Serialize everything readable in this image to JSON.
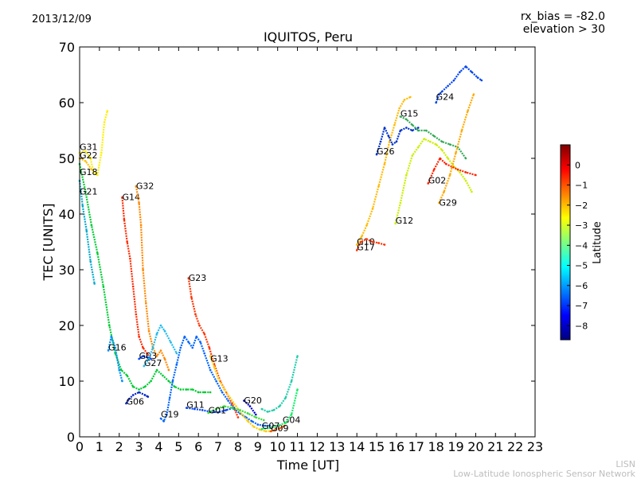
{
  "date": "2013/12/09",
  "header_right": {
    "line1": "rx_bias = -82.0",
    "line2": "elevation > 30"
  },
  "footer": {
    "line1": "LISN",
    "line2": "Low-Latitude Ionospheric Sensor Network"
  },
  "chart_data": {
    "type": "scatter",
    "title": "IQUITOS, Peru",
    "xlabel": "Time [UT]",
    "ylabel": "TEC [UNITS]",
    "xlim": [
      0,
      23
    ],
    "ylim": [
      0,
      70
    ],
    "xticks": [
      0,
      1,
      2,
      3,
      4,
      5,
      6,
      7,
      8,
      9,
      10,
      11,
      12,
      13,
      14,
      15,
      16,
      17,
      18,
      19,
      20,
      21,
      22,
      23
    ],
    "yticks": [
      0,
      10,
      20,
      30,
      40,
      50,
      60,
      70
    ],
    "grid": false,
    "colorbar": {
      "label": "Latitude",
      "range": [
        -8.7,
        1.0
      ],
      "ticks": [
        0,
        -1,
        -2,
        -3,
        -4,
        -5,
        -6,
        -7,
        -8
      ],
      "colormap": [
        "#00007f",
        "#0000ff",
        "#007fff",
        "#00ffff",
        "#7fff7f",
        "#ffff00",
        "#ff7f00",
        "#ff0000",
        "#7f0000"
      ]
    },
    "series": [
      {
        "name": "G31",
        "label_at": [
          0.0,
          51.5
        ],
        "color": "#ffee00",
        "points": [
          [
            0.0,
            51.0
          ],
          [
            0.3,
            51.3
          ],
          [
            0.55,
            50.0
          ],
          [
            0.7,
            47.5
          ],
          [
            0.9,
            47.0
          ],
          [
            1.1,
            51.0
          ],
          [
            1.25,
            56.5
          ],
          [
            1.4,
            58.5
          ]
        ]
      },
      {
        "name": "G22",
        "label_at": [
          0.0,
          50.0
        ],
        "color": "#ffc000",
        "points": [
          [
            0.0,
            50.0
          ],
          [
            0.3,
            49.5
          ],
          [
            0.6,
            48.0
          ]
        ]
      },
      {
        "name": "G18",
        "label_at": [
          0.0,
          47.0
        ],
        "color": "#00cc33",
        "points": [
          [
            0.0,
            49.0
          ],
          [
            0.3,
            44.0
          ],
          [
            0.6,
            38.0
          ],
          [
            0.9,
            33.0
          ],
          [
            1.2,
            27.0
          ],
          [
            1.5,
            20.0
          ],
          [
            1.8,
            15.0
          ],
          [
            2.1,
            12.0
          ],
          [
            2.4,
            11.0
          ],
          [
            2.7,
            9.0
          ],
          [
            3.0,
            8.5
          ],
          [
            3.3,
            9.0
          ],
          [
            3.6,
            10.0
          ],
          [
            3.9,
            12.0
          ],
          [
            4.2,
            11.0
          ],
          [
            4.5,
            10.0
          ],
          [
            4.8,
            9.0
          ],
          [
            5.1,
            8.5
          ],
          [
            5.4,
            8.5
          ],
          [
            5.7,
            8.5
          ],
          [
            6.0,
            8.0
          ],
          [
            6.3,
            8.0
          ],
          [
            6.6,
            8.0
          ]
        ]
      },
      {
        "name": "G21",
        "label_at": [
          0.0,
          43.5
        ],
        "color": "#00aacc",
        "points": [
          [
            0.0,
            46.0
          ],
          [
            0.15,
            41.5
          ],
          [
            0.35,
            37.0
          ],
          [
            0.55,
            31.5
          ],
          [
            0.75,
            27.5
          ]
        ]
      },
      {
        "name": "G16",
        "label_at": [
          1.45,
          15.5
        ],
        "color": "#0090ff",
        "points": [
          [
            1.45,
            15.5
          ],
          [
            1.6,
            18.0
          ],
          [
            1.8,
            16.0
          ],
          [
            2.0,
            12.0
          ],
          [
            2.15,
            10.0
          ]
        ]
      },
      {
        "name": "G14",
        "label_at": [
          2.15,
          42.5
        ],
        "color": "#ff2a00",
        "points": [
          [
            2.15,
            43.0
          ],
          [
            2.25,
            39.0
          ],
          [
            2.4,
            35.0
          ],
          [
            2.55,
            32.0
          ],
          [
            2.7,
            27.0
          ],
          [
            2.85,
            22.0
          ],
          [
            3.0,
            18.0
          ],
          [
            3.2,
            16.0
          ],
          [
            3.4,
            15.0
          ],
          [
            3.6,
            14.0
          ]
        ]
      },
      {
        "name": "G32",
        "label_at": [
          2.85,
          44.5
        ],
        "color": "#ff8800",
        "points": [
          [
            2.85,
            45.0
          ],
          [
            3.0,
            42.0
          ],
          [
            3.1,
            38.0
          ],
          [
            3.2,
            30.0
          ],
          [
            3.35,
            24.0
          ],
          [
            3.5,
            19.0
          ],
          [
            3.7,
            16.0
          ],
          [
            3.9,
            14.5
          ],
          [
            4.1,
            15.5
          ],
          [
            4.3,
            14.0
          ],
          [
            4.5,
            12.0
          ]
        ]
      },
      {
        "name": "G06",
        "label_at": [
          2.35,
          5.8
        ],
        "color": "#0022cc",
        "points": [
          [
            2.35,
            6.0
          ],
          [
            2.5,
            6.8
          ],
          [
            2.7,
            7.5
          ],
          [
            3.0,
            8.0
          ],
          [
            3.3,
            7.5
          ],
          [
            3.45,
            7.2
          ]
        ]
      },
      {
        "name": "G03",
        "label_at": [
          3.0,
          14.0
        ],
        "color": "#0044ff",
        "points": [
          [
            3.0,
            14.0
          ],
          [
            3.2,
            14.5
          ],
          [
            3.45,
            14.2
          ],
          [
            3.6,
            14.0
          ]
        ]
      },
      {
        "name": "G27",
        "label_at": [
          3.25,
          12.7
        ],
        "color": "#22bbee",
        "points": [
          [
            3.25,
            12.7
          ],
          [
            3.5,
            14.0
          ],
          [
            3.7,
            16.0
          ],
          [
            3.9,
            18.5
          ],
          [
            4.1,
            20.0
          ],
          [
            4.3,
            19.0
          ],
          [
            4.6,
            17.0
          ],
          [
            4.9,
            15.0
          ]
        ]
      },
      {
        "name": "G19",
        "label_at": [
          4.1,
          3.5
        ],
        "color": "#0066ff",
        "points": [
          [
            4.1,
            3.3
          ],
          [
            4.25,
            2.8
          ],
          [
            4.4,
            4.0
          ],
          [
            4.55,
            7.0
          ],
          [
            4.7,
            10.0
          ],
          [
            4.9,
            13.0
          ],
          [
            5.1,
            16.0
          ],
          [
            5.3,
            18.0
          ],
          [
            5.5,
            17.0
          ],
          [
            5.7,
            16.0
          ],
          [
            5.9,
            18.0
          ],
          [
            6.1,
            17.0
          ],
          [
            6.3,
            15.0
          ],
          [
            6.6,
            12.0
          ],
          [
            6.9,
            10.0
          ],
          [
            7.2,
            8.0
          ],
          [
            7.5,
            6.5
          ],
          [
            7.8,
            5.0
          ],
          [
            8.1,
            4.2
          ],
          [
            8.4,
            3.5
          ],
          [
            8.7,
            2.8
          ],
          [
            9.0,
            2.2
          ],
          [
            9.3,
            2.0
          ],
          [
            9.6,
            2.0
          ]
        ]
      },
      {
        "name": "G23",
        "label_at": [
          5.5,
          28.0
        ],
        "color": "#ff3300",
        "points": [
          [
            5.5,
            28.5
          ],
          [
            5.65,
            25.0
          ],
          [
            5.85,
            22.0
          ],
          [
            6.05,
            20.0
          ],
          [
            6.3,
            18.5
          ],
          [
            6.55,
            16.0
          ],
          [
            6.8,
            13.0
          ],
          [
            7.1,
            10.0
          ],
          [
            7.4,
            8.0
          ],
          [
            7.7,
            6.0
          ],
          [
            8.0,
            3.5
          ]
        ]
      },
      {
        "name": "G13",
        "label_at": [
          6.6,
          13.5
        ],
        "color": "#ffcc00",
        "points": [
          [
            6.6,
            14.5
          ],
          [
            6.8,
            12.5
          ],
          [
            7.0,
            10.5
          ],
          [
            7.3,
            8.5
          ],
          [
            7.6,
            7.0
          ],
          [
            7.9,
            5.5
          ],
          [
            8.2,
            4.0
          ],
          [
            8.5,
            2.8
          ],
          [
            8.8,
            1.8
          ],
          [
            9.1,
            1.3
          ],
          [
            9.4,
            1.0
          ],
          [
            9.7,
            1.0
          ]
        ]
      },
      {
        "name": "G11",
        "label_at": [
          5.4,
          5.2
        ],
        "color": "#0044ff",
        "points": [
          [
            5.4,
            5.2
          ],
          [
            5.8,
            5.0
          ],
          [
            6.2,
            4.8
          ],
          [
            6.6,
            4.5
          ],
          [
            7.0,
            4.4
          ],
          [
            7.4,
            4.8
          ],
          [
            7.8,
            5.2
          ]
        ]
      },
      {
        "name": "G01",
        "label_at": [
          6.5,
          4.2
        ],
        "color": "#33dd33",
        "points": [
          [
            6.5,
            4.3
          ],
          [
            6.9,
            5.0
          ],
          [
            7.3,
            5.5
          ],
          [
            7.7,
            5.2
          ],
          [
            8.1,
            4.8
          ],
          [
            8.5,
            4.2
          ],
          [
            8.9,
            3.5
          ],
          [
            9.3,
            3.0
          ]
        ]
      },
      {
        "name": "G20",
        "label_at": [
          8.3,
          6.0
        ],
        "color": "#0000cc",
        "points": [
          [
            8.3,
            6.5
          ],
          [
            8.6,
            5.5
          ],
          [
            8.9,
            4.0
          ]
        ]
      },
      {
        "name": "G04",
        "label_at": [
          10.25,
          2.5
        ],
        "color": "#22ccaa",
        "points": [
          [
            9.2,
            5.0
          ],
          [
            9.5,
            4.5
          ],
          [
            9.8,
            4.8
          ],
          [
            10.1,
            5.5
          ],
          [
            10.4,
            7.0
          ],
          [
            10.7,
            10.0
          ],
          [
            11.0,
            14.5
          ]
        ]
      },
      {
        "name": "G09",
        "label_at": [
          9.65,
          1.0
        ],
        "color": "#ff5500",
        "points": [
          [
            9.65,
            1.0
          ],
          [
            9.85,
            1.2
          ],
          [
            10.1,
            1.5
          ],
          [
            10.35,
            2.0
          ]
        ]
      },
      {
        "name": "G07",
        "label_at": [
          9.2,
          1.4
        ],
        "color": "#11ee66",
        "points": [
          [
            9.2,
            1.4
          ],
          [
            9.6,
            1.6
          ],
          [
            10.0,
            2.0
          ],
          [
            10.4,
            2.5
          ],
          [
            10.7,
            4.0
          ],
          [
            11.0,
            8.5
          ]
        ]
      },
      {
        "name": "G10",
        "label_at": [
          14.0,
          34.5
        ],
        "color": "#ffbb00",
        "points": [
          [
            14.0,
            34.5
          ],
          [
            14.25,
            36.0
          ],
          [
            14.5,
            38.0
          ],
          [
            14.8,
            41.0
          ],
          [
            15.1,
            45.0
          ],
          [
            15.4,
            49.0
          ],
          [
            15.65,
            53.0
          ],
          [
            15.9,
            56.0
          ],
          [
            16.15,
            59.0
          ],
          [
            16.4,
            60.5
          ],
          [
            16.7,
            61.0
          ]
        ]
      },
      {
        "name": "G17",
        "label_at": [
          14.0,
          33.5
        ],
        "color": "#ff3300",
        "points": [
          [
            14.0,
            33.5
          ],
          [
            14.2,
            35.0
          ],
          [
            14.5,
            35.5
          ],
          [
            14.8,
            35.0
          ],
          [
            15.1,
            34.8
          ],
          [
            15.4,
            34.5
          ]
        ]
      },
      {
        "name": "G12",
        "label_at": [
          15.95,
          38.3
        ],
        "color": "#ccee00",
        "points": [
          [
            15.95,
            38.3
          ],
          [
            16.2,
            42.0
          ],
          [
            16.5,
            47.0
          ],
          [
            16.8,
            50.5
          ],
          [
            17.1,
            52.0
          ],
          [
            17.4,
            53.5
          ],
          [
            17.7,
            53.0
          ],
          [
            18.0,
            52.5
          ],
          [
            18.3,
            51.5
          ],
          [
            18.6,
            50.0
          ],
          [
            18.9,
            48.5
          ],
          [
            19.2,
            47.5
          ],
          [
            19.5,
            46.0
          ],
          [
            19.8,
            44.0
          ]
        ]
      },
      {
        "name": "G26",
        "label_at": [
          15.0,
          50.7
        ],
        "color": "#0033cc",
        "points": [
          [
            15.0,
            50.7
          ],
          [
            15.2,
            53.0
          ],
          [
            15.4,
            55.5
          ],
          [
            15.6,
            54.0
          ],
          [
            15.8,
            52.5
          ],
          [
            16.0,
            53.0
          ],
          [
            16.2,
            55.0
          ],
          [
            16.5,
            55.5
          ],
          [
            16.8,
            55.0
          ],
          [
            17.1,
            55.5
          ]
        ]
      },
      {
        "name": "G15",
        "label_at": [
          16.2,
          57.5
        ],
        "color": "#33aa55",
        "points": [
          [
            16.2,
            57.5
          ],
          [
            16.5,
            57.0
          ],
          [
            16.8,
            56.0
          ],
          [
            17.1,
            55.0
          ],
          [
            17.5,
            55.0
          ],
          [
            17.9,
            54.0
          ],
          [
            18.3,
            53.0
          ],
          [
            18.7,
            52.5
          ],
          [
            19.1,
            52.0
          ],
          [
            19.5,
            50.0
          ]
        ]
      },
      {
        "name": "G24",
        "label_at": [
          18.0,
          60.5
        ],
        "color": "#0044ee",
        "points": [
          [
            18.0,
            60.0
          ],
          [
            18.15,
            61.5
          ],
          [
            18.3,
            62.0
          ],
          [
            18.6,
            63.0
          ],
          [
            18.9,
            64.0
          ],
          [
            19.2,
            65.5
          ],
          [
            19.5,
            66.5
          ],
          [
            19.8,
            65.5
          ],
          [
            20.1,
            64.5
          ],
          [
            20.3,
            64.0
          ]
        ]
      },
      {
        "name": "G02",
        "label_at": [
          17.6,
          45.5
        ],
        "color": "#ff2200",
        "points": [
          [
            17.6,
            45.5
          ],
          [
            17.9,
            48.0
          ],
          [
            18.2,
            50.0
          ],
          [
            18.5,
            49.0
          ],
          [
            18.8,
            48.5
          ],
          [
            19.1,
            48.0
          ],
          [
            19.5,
            47.5
          ],
          [
            20.0,
            47.0
          ]
        ]
      },
      {
        "name": "G29",
        "label_at": [
          18.15,
          41.5
        ],
        "color": "#ffaa00",
        "points": [
          [
            18.15,
            42.0
          ],
          [
            18.4,
            44.0
          ],
          [
            18.7,
            47.0
          ],
          [
            19.0,
            51.0
          ],
          [
            19.3,
            55.0
          ],
          [
            19.6,
            58.5
          ],
          [
            19.9,
            61.5
          ]
        ]
      }
    ]
  }
}
